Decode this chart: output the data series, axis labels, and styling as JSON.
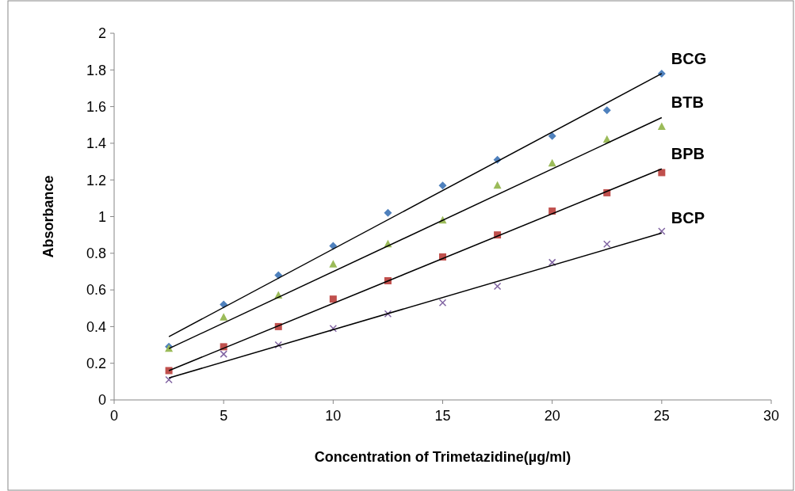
{
  "chart_data": {
    "type": "scatter",
    "xlabel": "Concentration of Trimetazidine(µg/ml)",
    "ylabel": "Absorbance",
    "x": [
      2.5,
      5,
      7.5,
      10,
      12.5,
      15,
      17.5,
      20,
      22.5,
      25
    ],
    "xlim": [
      0,
      30
    ],
    "xticks": [
      0,
      5,
      10,
      15,
      20,
      25,
      30
    ],
    "ylim": [
      0,
      2
    ],
    "yticks": [
      0,
      0.2,
      0.4,
      0.6,
      0.8,
      1,
      1.2,
      1.4,
      1.6,
      1.8,
      2
    ],
    "grid": false,
    "series": [
      {
        "name": "BCG",
        "color": "#4f81bd",
        "marker": "diamond",
        "values": [
          0.29,
          0.52,
          0.68,
          0.84,
          1.02,
          1.17,
          1.31,
          1.44,
          1.58,
          1.78
        ]
      },
      {
        "name": "BTB",
        "color": "#9bbb59",
        "marker": "triangle",
        "values": [
          0.28,
          0.45,
          0.57,
          0.74,
          0.85,
          0.98,
          1.17,
          1.29,
          1.42,
          1.49
        ]
      },
      {
        "name": "BPB",
        "color": "#c0504d",
        "marker": "square",
        "values": [
          0.16,
          0.29,
          0.4,
          0.55,
          0.65,
          0.78,
          0.9,
          1.03,
          1.13,
          1.24
        ]
      },
      {
        "name": "BCP",
        "color": "#8064a2",
        "marker": "cross",
        "values": [
          0.11,
          0.25,
          0.3,
          0.39,
          0.47,
          0.53,
          0.62,
          0.75,
          0.85,
          0.92
        ]
      },
      {
        "type": "line",
        "color": "#000000",
        "values": [
          0.345,
          null,
          null,
          null,
          null,
          null,
          null,
          null,
          null,
          1.78
        ]
      },
      {
        "type": "line",
        "color": "#000000",
        "values": [
          0.28,
          null,
          null,
          null,
          null,
          null,
          null,
          null,
          null,
          1.54
        ]
      },
      {
        "type": "line",
        "color": "#000000",
        "values": [
          0.16,
          null,
          null,
          null,
          null,
          null,
          null,
          null,
          null,
          1.26
        ]
      },
      {
        "type": "line",
        "color": "#000000",
        "values": [
          0.12,
          null,
          null,
          null,
          null,
          null,
          null,
          null,
          null,
          0.91
        ]
      }
    ]
  }
}
